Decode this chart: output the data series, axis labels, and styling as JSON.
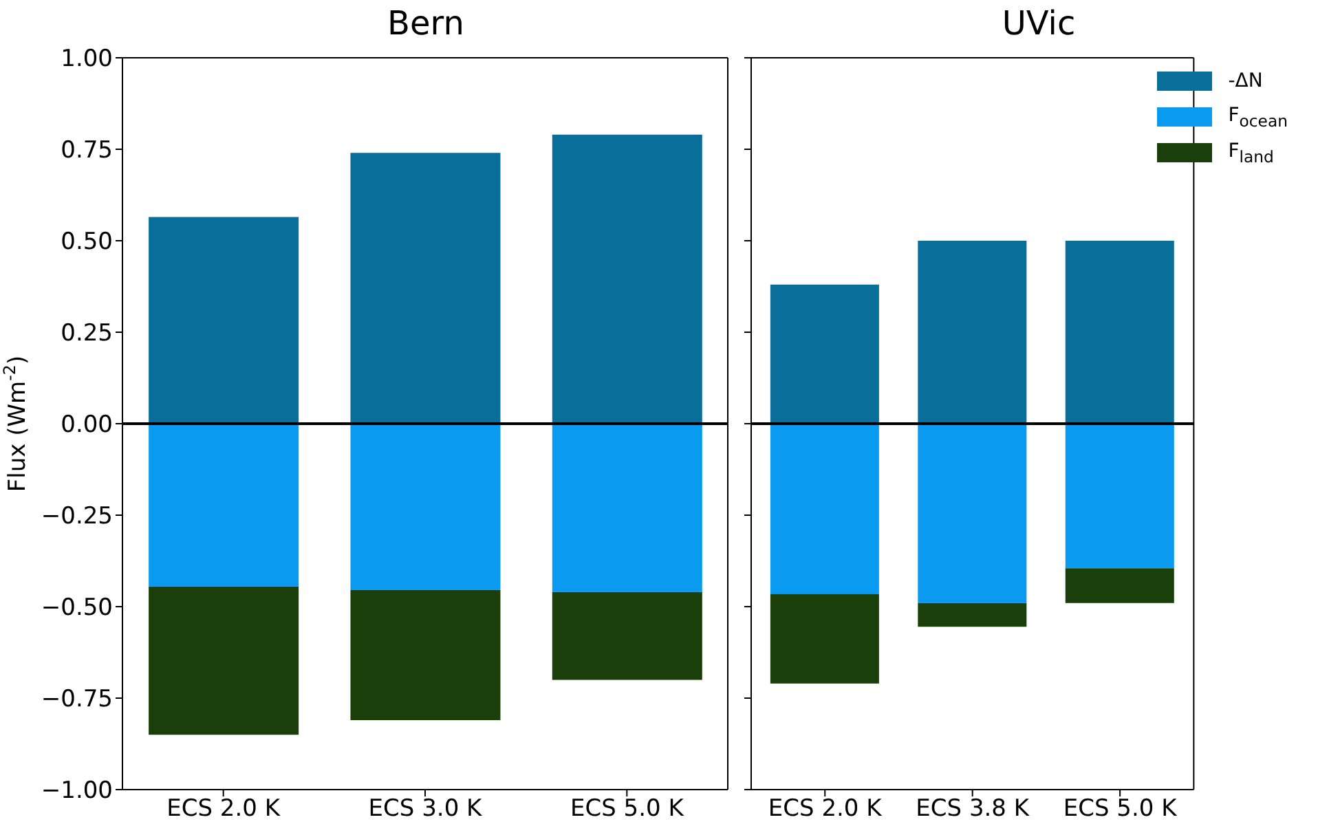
{
  "chart_data": [
    {
      "type": "bar",
      "title": "Bern",
      "ylabel": "Flux (Wm$^{-2}$)",
      "categories": [
        "ECS 2.0 K",
        "ECS 3.0 K",
        "ECS 5.0 K"
      ],
      "stacked": true,
      "series": [
        {
          "color": "#0a6e9a",
          "values": [
            0.565,
            0.74,
            0.79
          ]
        },
        {
          "color": "#0a9af0",
          "values": [
            -0.445,
            -0.455,
            -0.46
          ]
        },
        {
          "color": "#1a3f0a",
          "values": [
            -0.405,
            -0.355,
            -0.24
          ]
        }
      ],
      "ylim": [
        -1,
        1
      ],
      "yticks": [
        {
          "value": -1,
          "label": "−1.00"
        },
        {
          "value": -0.75,
          "label": "−0.75"
        },
        {
          "value": -0.5,
          "label": "−0.50"
        },
        {
          "value": -0.25,
          "label": "−0.25"
        },
        {
          "value": 0,
          "label": "0.00"
        },
        {
          "value": 0.25,
          "label": "0.25"
        },
        {
          "value": 0.5,
          "label": "0.50"
        },
        {
          "value": 0.75,
          "label": "0.75"
        },
        {
          "value": 1,
          "label": "1.00"
        }
      ],
      "ref_lines": [
        {
          "axis": "y",
          "value": 0,
          "color": "#000000"
        }
      ],
      "legend": false
    },
    {
      "type": "bar",
      "title": "UVic",
      "categories": [
        "ECS 2.0 K",
        "ECS 3.8 K",
        "ECS 5.0 K"
      ],
      "stacked": true,
      "series": [
        {
          "name": "-ΔN",
          "color": "#0a6e9a",
          "values": [
            0.38,
            0.5,
            0.5
          ]
        },
        {
          "name": "F$_{ocean}$",
          "color": "#0a9af0",
          "values": [
            -0.465,
            -0.49,
            -0.395
          ]
        },
        {
          "name": "F$_{land}$",
          "color": "#1a3f0a",
          "values": [
            -0.245,
            -0.065,
            -0.095
          ]
        }
      ],
      "ylim": [
        -1,
        1
      ],
      "yticks": [
        -1,
        -0.75,
        -0.5,
        -0.25,
        0,
        0.25,
        0.5,
        0.75,
        1
      ],
      "tick_labels": "x",
      "ref_lines": [
        {
          "axis": "y",
          "value": 0,
          "color": "#000000"
        }
      ],
      "legend": "top right"
    }
  ]
}
